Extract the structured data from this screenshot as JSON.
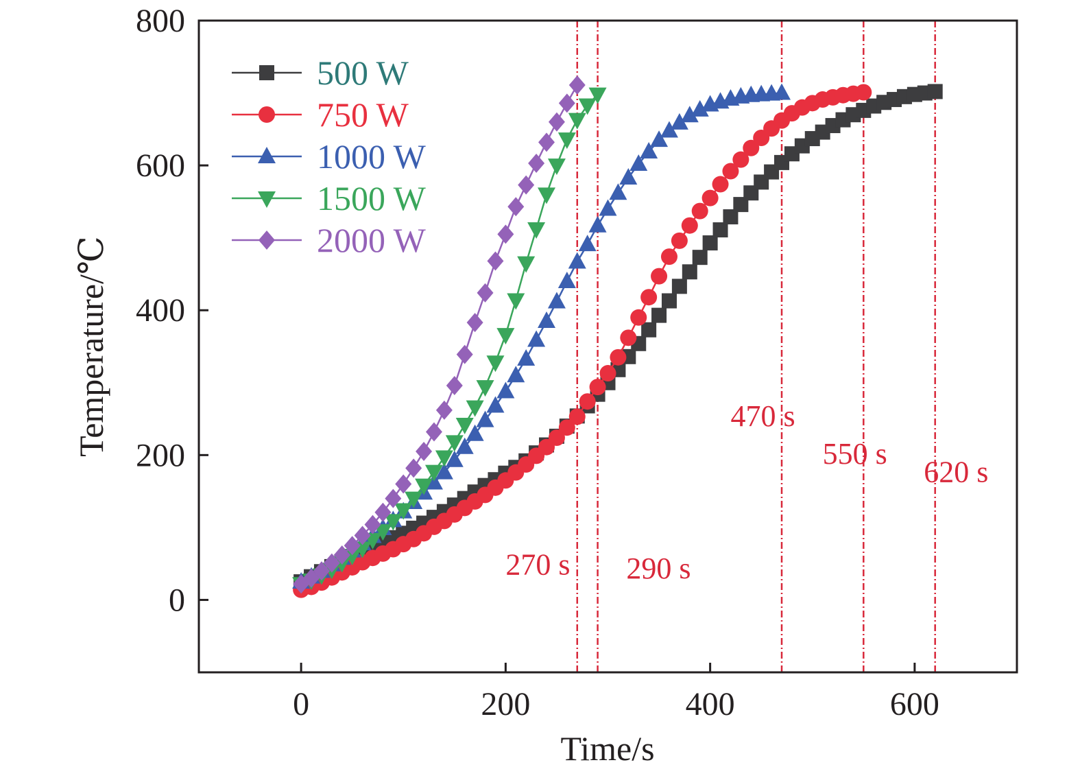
{
  "chart_data": {
    "type": "line",
    "xlabel": "Time/s",
    "ylabel": "Temperature/℃",
    "xlim": [
      -100,
      700
    ],
    "ylim": [
      -100,
      800
    ],
    "x_ticks": [
      0,
      200,
      400,
      600
    ],
    "y_ticks": [
      0,
      200,
      400,
      600,
      800
    ],
    "grid": false,
    "legend_position": "top-left",
    "series": [
      {
        "name": "500 W",
        "color": "#3d3d3f",
        "label_color": "#2e7a78",
        "marker": "square",
        "x": [
          0,
          10,
          20,
          30,
          40,
          50,
          60,
          70,
          80,
          90,
          100,
          110,
          120,
          130,
          140,
          150,
          160,
          170,
          180,
          190,
          200,
          210,
          220,
          230,
          240,
          250,
          260,
          270,
          280,
          290,
          300,
          310,
          320,
          330,
          340,
          350,
          360,
          370,
          380,
          390,
          400,
          410,
          420,
          430,
          440,
          450,
          460,
          470,
          480,
          490,
          500,
          510,
          520,
          530,
          540,
          550,
          560,
          570,
          580,
          590,
          600,
          610,
          620
        ],
        "y": [
          25,
          32,
          39,
          46,
          53,
          60,
          67,
          74,
          80,
          86,
          92,
          99,
          106,
          114,
          122,
          131,
          140,
          149,
          158,
          166,
          175,
          183,
          192,
          203,
          214,
          226,
          240,
          254,
          268,
          284,
          300,
          318,
          336,
          354,
          373,
          393,
          413,
          433,
          453,
          473,
          493,
          511,
          529,
          546,
          562,
          577,
          591,
          604,
          616,
          627,
          637,
          646,
          655,
          663,
          670,
          676,
          682,
          687,
          691,
          695,
          698,
          700,
          702
        ]
      },
      {
        "name": "750 W",
        "color": "#e8303f",
        "label_color": "#e8303f",
        "marker": "circle",
        "x": [
          0,
          10,
          20,
          30,
          40,
          50,
          60,
          70,
          80,
          90,
          100,
          110,
          120,
          130,
          140,
          150,
          160,
          170,
          180,
          190,
          200,
          210,
          220,
          230,
          240,
          250,
          260,
          270,
          280,
          290,
          300,
          310,
          320,
          330,
          340,
          350,
          360,
          370,
          380,
          390,
          400,
          410,
          420,
          430,
          440,
          450,
          460,
          470,
          480,
          490,
          500,
          510,
          520,
          530,
          540,
          550
        ],
        "y": [
          14,
          18,
          24,
          31,
          38,
          45,
          52,
          58,
          64,
          70,
          77,
          84,
          92,
          101,
          109,
          118,
          127,
          136,
          145,
          155,
          165,
          176,
          187,
          199,
          211,
          224,
          238,
          253,
          274,
          294,
          313,
          335,
          362,
          390,
          418,
          447,
          474,
          496,
          517,
          537,
          555,
          574,
          592,
          608,
          624,
          638,
          651,
          662,
          672,
          680,
          686,
          691,
          694,
          697,
          699,
          701
        ]
      },
      {
        "name": "1000 W",
        "color": "#3b5fb0",
        "label_color": "#3b5fb0",
        "marker": "triangle-up",
        "x": [
          0,
          10,
          20,
          30,
          40,
          50,
          60,
          70,
          80,
          90,
          100,
          110,
          120,
          130,
          140,
          150,
          160,
          170,
          180,
          190,
          200,
          210,
          220,
          230,
          240,
          250,
          260,
          270,
          280,
          290,
          300,
          310,
          320,
          330,
          340,
          350,
          360,
          370,
          380,
          390,
          400,
          410,
          420,
          430,
          440,
          450,
          460,
          470
        ],
        "y": [
          25,
          32,
          40,
          49,
          58,
          68,
          78,
          88,
          99,
          110,
          122,
          135,
          148,
          162,
          176,
          193,
          211,
          229,
          248,
          268,
          288,
          310,
          333,
          359,
          385,
          412,
          440,
          467,
          491,
          517,
          540,
          562,
          583,
          602,
          619,
          635,
          648,
          659,
          669,
          677,
          684,
          688,
          692,
          695,
          697,
          698,
          699,
          700
        ]
      },
      {
        "name": "1500 W",
        "color": "#3aa65b",
        "label_color": "#3aa65b",
        "marker": "triangle-down",
        "x": [
          0,
          10,
          20,
          30,
          40,
          50,
          60,
          70,
          80,
          90,
          100,
          110,
          120,
          130,
          140,
          150,
          160,
          170,
          180,
          190,
          200,
          210,
          220,
          230,
          240,
          250,
          260,
          270,
          280,
          290
        ],
        "y": [
          22,
          27,
          34,
          42,
          51,
          61,
          71,
          83,
          95,
          109,
          124,
          140,
          158,
          177,
          197,
          218,
          242,
          266,
          294,
          328,
          366,
          414,
          465,
          512,
          560,
          600,
          636,
          663,
          683,
          698
        ]
      },
      {
        "name": "2000 W",
        "color": "#9462b8",
        "label_color": "#9462b8",
        "marker": "diamond",
        "x": [
          0,
          10,
          20,
          30,
          40,
          50,
          60,
          70,
          80,
          90,
          100,
          110,
          120,
          130,
          140,
          150,
          160,
          170,
          180,
          190,
          200,
          210,
          220,
          230,
          240,
          250,
          260,
          270
        ],
        "y": [
          22,
          30,
          40,
          51,
          62,
          75,
          89,
          104,
          121,
          140,
          160,
          182,
          205,
          232,
          262,
          296,
          339,
          383,
          424,
          468,
          505,
          543,
          573,
          603,
          632,
          660,
          686,
          711
        ]
      }
    ],
    "vlines": [
      {
        "x": 270,
        "label": "270 s",
        "label_x": 200,
        "label_y": 35
      },
      {
        "x": 290,
        "label": "290 s",
        "label_x": 318,
        "label_y": 30
      },
      {
        "x": 470,
        "label": "470 s",
        "label_x": 420,
        "label_y": 240
      },
      {
        "x": 550,
        "label": "550 s",
        "label_x": 510,
        "label_y": 188
      },
      {
        "x": 620,
        "label": "620 s",
        "label_x": 609,
        "label_y": 163
      }
    ],
    "vline_color": "#d8283a"
  }
}
